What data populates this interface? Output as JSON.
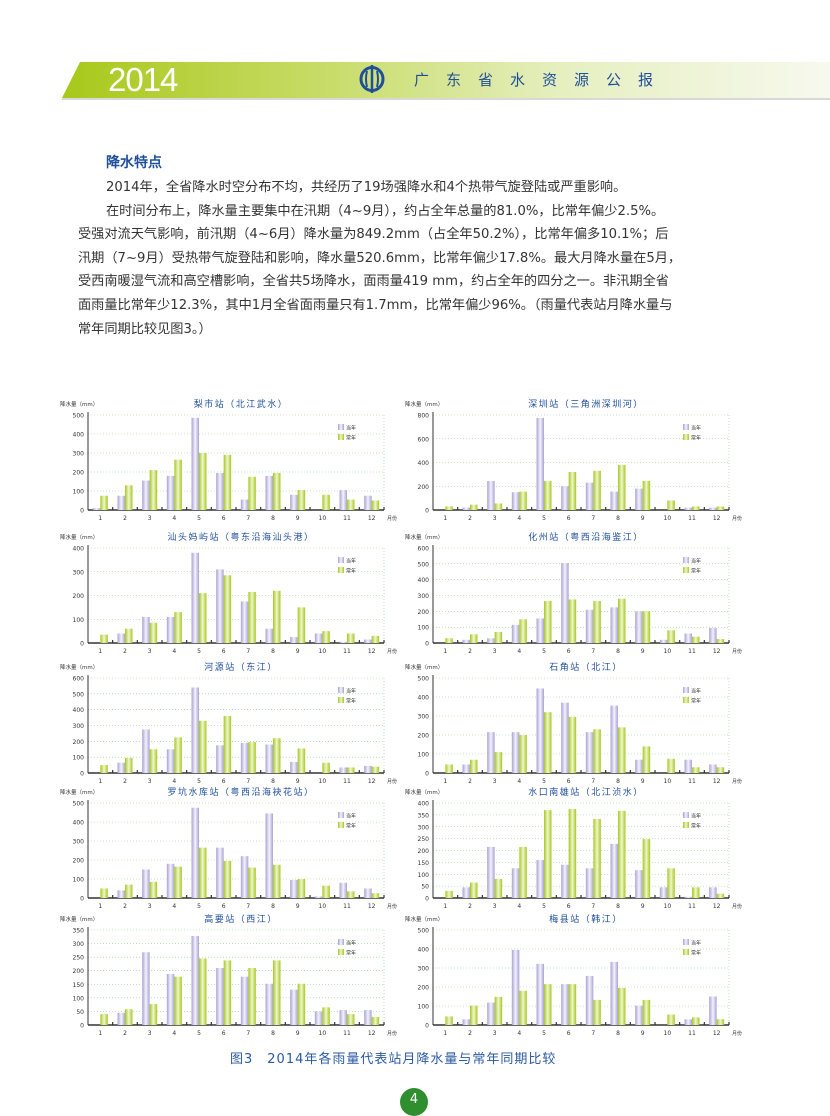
{
  "header": {
    "year": "2014",
    "title": "广东省水资源公报",
    "logo": "water-resources-emblem"
  },
  "section_title": "降水特点",
  "paragraphs": [
    [
      "2014年，全省降水时空分布不均，共经历了19场强降水和4个热带气旋登陆或严重影响。"
    ],
    [
      "在时间分布上，降水量主要集中在汛期（4~9月），约占全年总量的81.0%，比常年偏少2.5%。",
      "受强对流天气影响，前汛期（4~6月）降水量为849.2mm（占全年50.2%），比常年偏多10.1%；后",
      "汛期（7~9月）受热带气旋登陆和影响，降水量520.6mm，比常年偏少17.8%。最大月降水量在5月，",
      "受西南暖湿气流和高空槽影响，全省共5场降水，面雨量419 mm，约占全年的四分之一。非汛期全省",
      "面雨量比常年少12.3%，其中1月全省面雨量只有1.7mm，比常年偏少96%。（雨量代表站月降水量与",
      "常年同期比较见图3。）"
    ]
  ],
  "colors": {
    "current_year": "#aaa2d6",
    "normal_year": "#a6c81c",
    "title_blue": "#1f4f9a",
    "grid": "#8fd08f"
  },
  "chart_data": [
    {
      "type": "bar",
      "title": "梨市站（北江武水）",
      "ylabel": "降水量（mm）",
      "xlabel": "月份",
      "ylim": [
        0,
        500
      ],
      "yticks": [
        0,
        100,
        200,
        300,
        400,
        500
      ],
      "grid": true,
      "legend": "top-right",
      "categories": [
        "1",
        "2",
        "3",
        "4",
        "5",
        "6",
        "7",
        "8",
        "9",
        "10",
        "11",
        "12"
      ],
      "series": [
        {
          "name": "当年",
          "values": [
            10,
            75,
            155,
            180,
            485,
            195,
            55,
            180,
            80,
            0,
            105,
            75
          ]
        },
        {
          "name": "常年",
          "values": [
            75,
            130,
            210,
            265,
            300,
            290,
            175,
            195,
            105,
            80,
            55,
            50
          ]
        }
      ]
    },
    {
      "type": "bar",
      "title": "深圳站（三角洲深圳河）",
      "ylabel": "降水量（mm）",
      "xlabel": "月份",
      "ylim": [
        0,
        800
      ],
      "yticks": [
        0,
        200,
        400,
        600,
        800
      ],
      "grid": true,
      "legend": "top-right",
      "categories": [
        "1",
        "2",
        "3",
        "4",
        "5",
        "6",
        "7",
        "8",
        "9",
        "10",
        "11",
        "12"
      ],
      "series": [
        {
          "name": "当年",
          "values": [
            0,
            20,
            245,
            150,
            775,
            200,
            230,
            155,
            180,
            0,
            20,
            20
          ]
        },
        {
          "name": "常年",
          "values": [
            30,
            45,
            55,
            155,
            245,
            320,
            330,
            380,
            245,
            80,
            30,
            30
          ]
        }
      ]
    },
    {
      "type": "bar",
      "title": "汕头妈屿站（粤东沿海汕头港）",
      "ylabel": "降水量（mm）",
      "xlabel": "月份",
      "ylim": [
        0,
        400
      ],
      "yticks": [
        0,
        100,
        200,
        300,
        400
      ],
      "grid": true,
      "legend": "top-right",
      "categories": [
        "1",
        "2",
        "3",
        "4",
        "5",
        "6",
        "7",
        "8",
        "9",
        "10",
        "11",
        "12"
      ],
      "series": [
        {
          "name": "当年",
          "values": [
            0,
            40,
            110,
            110,
            380,
            310,
            175,
            60,
            25,
            40,
            5,
            15
          ]
        },
        {
          "name": "常年",
          "values": [
            35,
            60,
            85,
            130,
            210,
            285,
            215,
            220,
            150,
            50,
            40,
            30
          ]
        }
      ]
    },
    {
      "type": "bar",
      "title": "化州站（粤西沿海鉴江）",
      "ylabel": "降水量（mm）",
      "xlabel": "月份",
      "ylim": [
        0,
        600
      ],
      "yticks": [
        0,
        100,
        200,
        300,
        400,
        500,
        600
      ],
      "grid": true,
      "legend": "top-right",
      "categories": [
        "1",
        "2",
        "3",
        "4",
        "5",
        "6",
        "7",
        "8",
        "9",
        "10",
        "11",
        "12"
      ],
      "series": [
        {
          "name": "当年",
          "values": [
            0,
            20,
            30,
            115,
            155,
            505,
            210,
            225,
            200,
            20,
            60,
            95
          ]
        },
        {
          "name": "常年",
          "values": [
            30,
            55,
            70,
            150,
            265,
            275,
            265,
            280,
            200,
            80,
            40,
            25
          ]
        }
      ]
    },
    {
      "type": "bar",
      "title": "河源站（东江）",
      "ylabel": "降水量（mm）",
      "xlabel": "月份",
      "ylim": [
        0,
        600
      ],
      "yticks": [
        0,
        100,
        200,
        300,
        400,
        500,
        600
      ],
      "grid": true,
      "legend": "top-right",
      "categories": [
        "1",
        "2",
        "3",
        "4",
        "5",
        "6",
        "7",
        "8",
        "9",
        "10",
        "11",
        "12"
      ],
      "series": [
        {
          "name": "当年",
          "values": [
            0,
            65,
            275,
            150,
            540,
            175,
            190,
            180,
            70,
            0,
            35,
            45
          ]
        },
        {
          "name": "常年",
          "values": [
            50,
            95,
            150,
            225,
            330,
            360,
            195,
            220,
            155,
            65,
            35,
            40
          ]
        }
      ]
    },
    {
      "type": "bar",
      "title": "石角站（北江）",
      "ylabel": "降水量（mm）",
      "xlabel": "月份",
      "ylim": [
        0,
        500
      ],
      "yticks": [
        0,
        100,
        200,
        300,
        400,
        500
      ],
      "grid": true,
      "legend": "top-right",
      "categories": [
        "1",
        "2",
        "3",
        "4",
        "5",
        "6",
        "7",
        "8",
        "9",
        "10",
        "11",
        "12"
      ],
      "series": [
        {
          "name": "当年",
          "values": [
            0,
            45,
            215,
            215,
            445,
            370,
            215,
            355,
            70,
            0,
            70,
            45
          ]
        },
        {
          "name": "常年",
          "values": [
            45,
            70,
            110,
            200,
            320,
            295,
            230,
            240,
            140,
            75,
            30,
            30
          ]
        }
      ]
    },
    {
      "type": "bar",
      "title": "罗坑水库站（粤西沿海袂花站）",
      "ylabel": "降水量（mm）",
      "xlabel": "月份",
      "ylim": [
        0,
        500
      ],
      "yticks": [
        0,
        100,
        200,
        300,
        400,
        500
      ],
      "grid": true,
      "legend": "top-right",
      "categories": [
        "1",
        "2",
        "3",
        "4",
        "5",
        "6",
        "7",
        "8",
        "9",
        "10",
        "11",
        "12"
      ],
      "series": [
        {
          "name": "当年",
          "values": [
            0,
            40,
            150,
            180,
            475,
            265,
            220,
            445,
            95,
            8,
            80,
            50
          ]
        },
        {
          "name": "常年",
          "values": [
            50,
            70,
            85,
            165,
            265,
            195,
            160,
            175,
            100,
            65,
            35,
            25
          ]
        }
      ]
    },
    {
      "type": "bar",
      "title": "水口南雄站（北江浈水）",
      "ylabel": "降水量（mm）",
      "xlabel": "月份",
      "ylim": [
        0,
        400
      ],
      "yticks": [
        0,
        50,
        100,
        150,
        200,
        250,
        300,
        350,
        400
      ],
      "grid": true,
      "legend": "top-right",
      "categories": [
        "1",
        "2",
        "3",
        "4",
        "5",
        "6",
        "7",
        "8",
        "9",
        "10",
        "11",
        "12"
      ],
      "series": [
        {
          "name": "当年",
          "values": [
            0,
            45,
            215,
            125,
            160,
            140,
            125,
            228,
            117,
            45,
            5,
            45
          ]
        },
        {
          "name": "常年",
          "values": [
            30,
            65,
            80,
            215,
            370,
            375,
            333,
            367,
            248,
            125,
            45,
            18
          ]
        }
      ]
    },
    {
      "type": "bar",
      "title": "高要站（西江）",
      "ylabel": "降水量（mm）",
      "xlabel": "月份",
      "ylim": [
        0,
        350
      ],
      "yticks": [
        0,
        50,
        100,
        150,
        200,
        250,
        300,
        350
      ],
      "grid": true,
      "legend": "top-right",
      "categories": [
        "1",
        "2",
        "3",
        "4",
        "5",
        "6",
        "7",
        "8",
        "9",
        "10",
        "11",
        "12"
      ],
      "series": [
        {
          "name": "当年",
          "values": [
            0,
            45,
            268,
            188,
            328,
            210,
            178,
            152,
            130,
            50,
            55,
            55
          ]
        },
        {
          "name": "常年",
          "values": [
            40,
            58,
            77,
            178,
            245,
            238,
            210,
            238,
            152,
            65,
            40,
            30
          ]
        }
      ]
    },
    {
      "type": "bar",
      "title": "梅县站（韩江）",
      "ylabel": "降水量（mm）",
      "xlabel": "月份",
      "ylim": [
        0,
        500
      ],
      "yticks": [
        0,
        100,
        200,
        300,
        400,
        500
      ],
      "grid": true,
      "legend": "top-right",
      "categories": [
        "1",
        "2",
        "3",
        "4",
        "5",
        "6",
        "7",
        "8",
        "9",
        "10",
        "11",
        "12"
      ],
      "series": [
        {
          "name": "当年",
          "values": [
            0,
            30,
            118,
            395,
            322,
            215,
            258,
            332,
            102,
            0,
            30,
            150
          ]
        },
        {
          "name": "常年",
          "values": [
            45,
            102,
            148,
            180,
            215,
            215,
            132,
            195,
            132,
            55,
            40,
            30
          ]
        }
      ]
    }
  ],
  "caption": "图3　2014年各雨量代表站月降水量与常年同期比较",
  "page_number": "4"
}
